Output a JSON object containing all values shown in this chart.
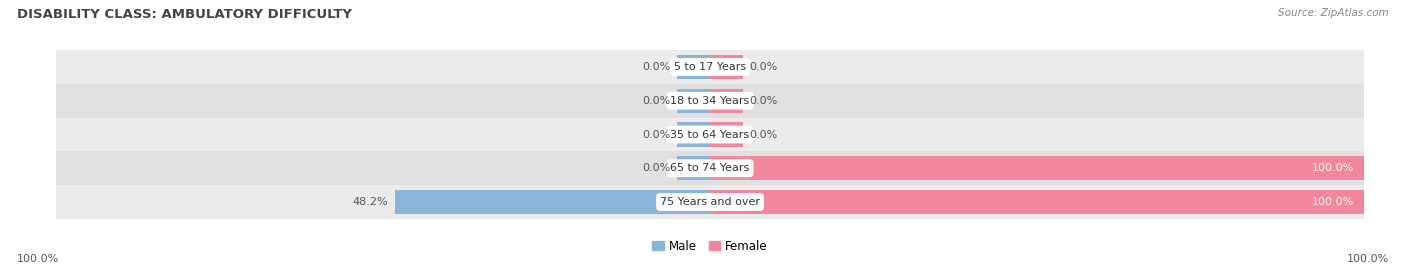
{
  "title": "DISABILITY CLASS: AMBULATORY DIFFICULTY",
  "source": "Source: ZipAtlas.com",
  "categories": [
    "5 to 17 Years",
    "18 to 34 Years",
    "35 to 64 Years",
    "65 to 74 Years",
    "75 Years and over"
  ],
  "male_values": [
    0.0,
    0.0,
    0.0,
    0.0,
    48.2
  ],
  "female_values": [
    0.0,
    0.0,
    0.0,
    100.0,
    100.0
  ],
  "male_color": "#8ab4d8",
  "female_color": "#f0879d",
  "bar_bg_color_odd": "#ebebeb",
  "bar_bg_color_even": "#e0e0e0",
  "label_color": "#555555",
  "title_color": "#444444",
  "max_value": 100.0,
  "bar_height": 0.72,
  "figure_bg": "#ffffff",
  "legend_male": "Male",
  "legend_female": "Female",
  "x_left_label": "100.0%",
  "x_right_label": "100.0%",
  "stub_size": 5.0
}
